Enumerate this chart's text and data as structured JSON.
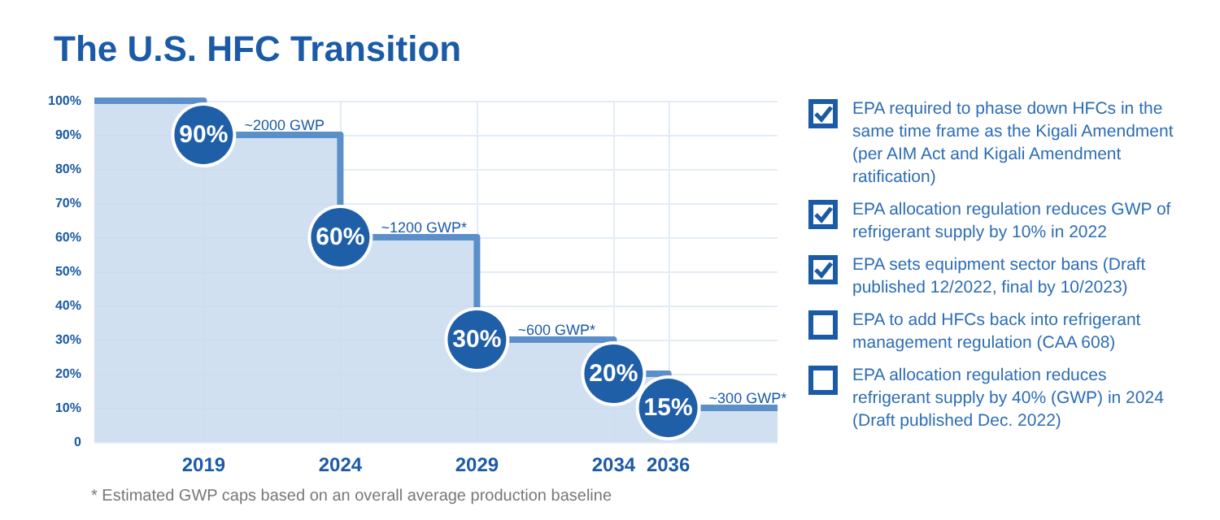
{
  "chart_data": {
    "type": "step",
    "title": "The U.S. HFC Transition",
    "x": [
      2015,
      2019,
      2024,
      2029,
      2034,
      2036,
      2040
    ],
    "series": [
      {
        "color": "#5b8fc9",
        "values": [
          100,
          90,
          60,
          30,
          20,
          10,
          10
        ]
      }
    ],
    "xlim": [
      2015,
      2040
    ],
    "xticks": [
      2019,
      2024,
      2029,
      2034,
      2036
    ],
    "ylim": [
      0,
      100
    ],
    "yticks": [
      {
        "value": 0,
        "label": "0"
      },
      {
        "value": 10,
        "label": "10%"
      },
      {
        "value": 20,
        "label": "20%"
      },
      {
        "value": 30,
        "label": "30%"
      },
      {
        "value": 40,
        "label": "40%"
      },
      {
        "value": 50,
        "label": "50%"
      },
      {
        "value": 60,
        "label": "60%"
      },
      {
        "value": 70,
        "label": "70%"
      },
      {
        "value": 80,
        "label": "80%"
      },
      {
        "value": 90,
        "label": "90%"
      },
      {
        "value": 100,
        "label": "100%"
      }
    ],
    "grid": true,
    "annotations": [
      {
        "text": "90%",
        "x": 2019,
        "y": 90
      },
      {
        "text": "60%",
        "x": 2024,
        "y": 60
      },
      {
        "text": "30%",
        "x": 2029,
        "y": 30
      },
      {
        "text": "20%",
        "x": 2034,
        "y": 20
      },
      {
        "text": "15%",
        "x": 2036,
        "y": 10
      },
      {
        "text": "~2000 GWP",
        "x": 2019,
        "y": 90
      },
      {
        "text": "~1200 GWP*",
        "x": 2024,
        "y": 60
      },
      {
        "text": "~600 GWP*",
        "x": 2029,
        "y": 30
      },
      {
        "text": "~300 GWP*",
        "x": 2036,
        "y": 10
      },
      "* Estimated GWP caps based on an overall average production baseline",
      "EPA required to phase down HFCs in the same time frame as the Kigali Amendment (per AIM Act and Kigali Amendment ratification)",
      "EPA allocation regulation reduces GWP of refrigerant supply by 10% in 2022",
      "EPA sets equipment sector bans (Draft published 12/2022, final by 10/2023)",
      "EPA to add HFCs back into refrigerant management regulation (CAA 608)",
      "EPA allocation regulation reduces refrigerant supply by 40% (GWP) in 2024 (Draft published Dec. 2022)"
    ]
  }
}
